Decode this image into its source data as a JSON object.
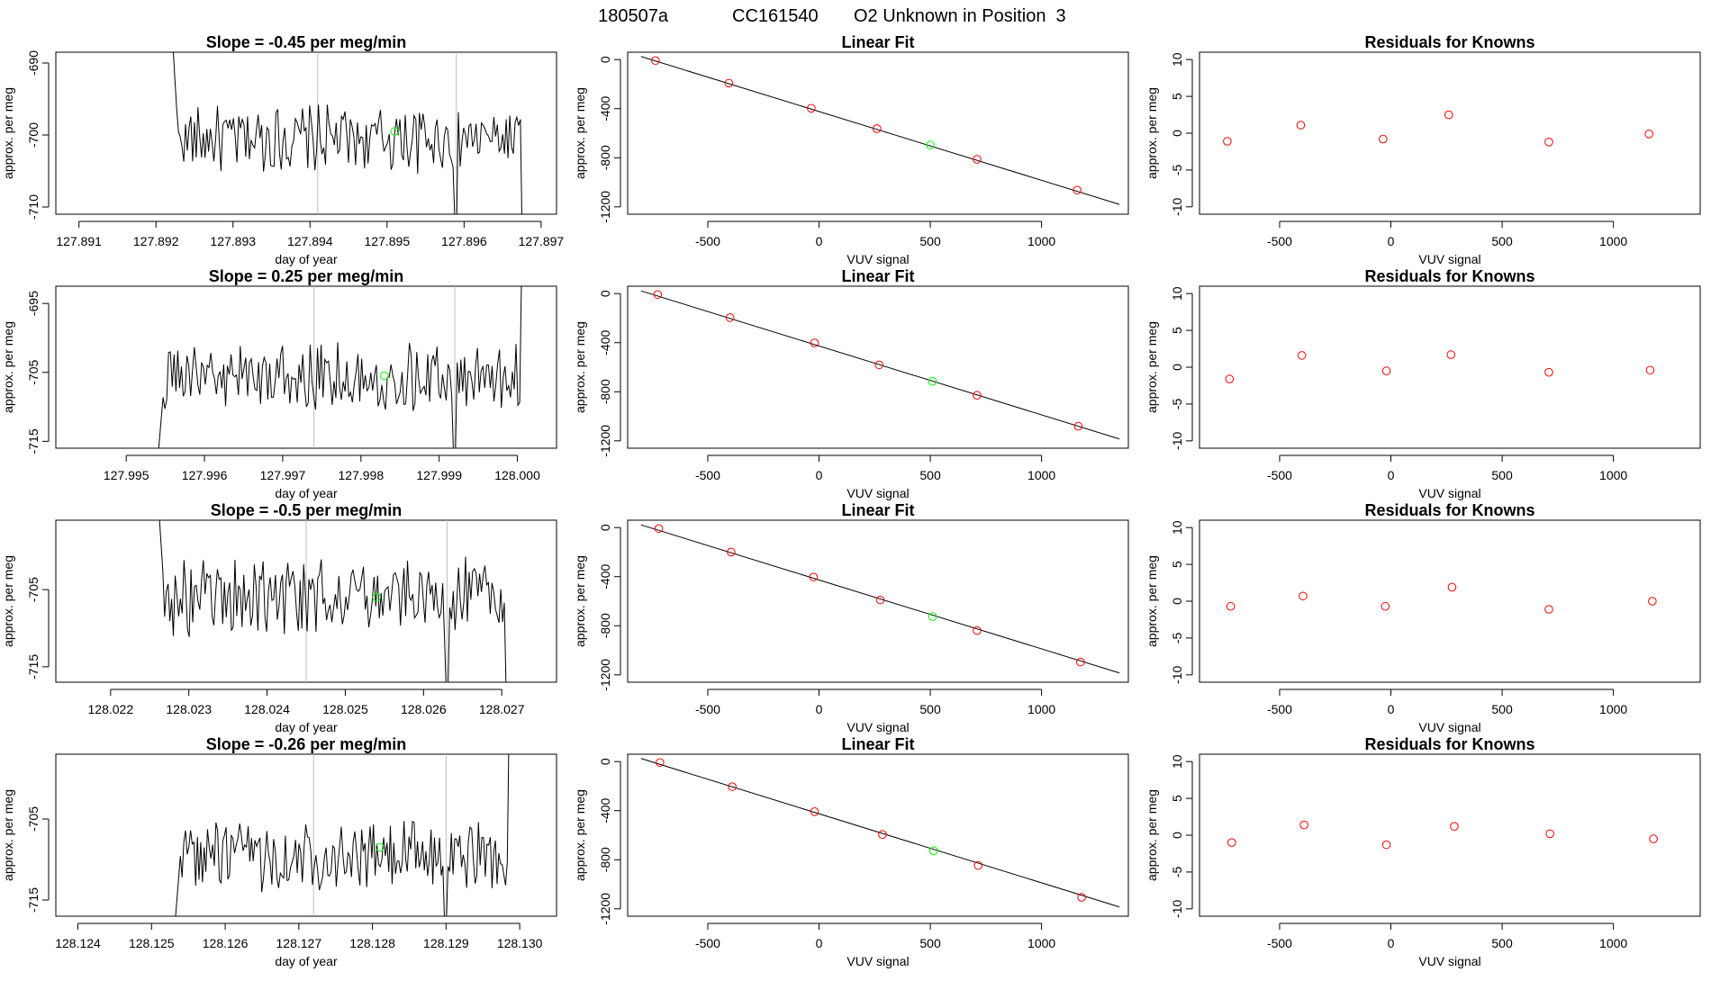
{
  "header": {
    "run_id": "180507a",
    "cylinder": "CC161540",
    "description": "O2 Unknown in Position  3"
  },
  "labels": {
    "day_of_year": "day of year",
    "approx_per_meg": "approx. per meg",
    "vuv_signal": "VUV signal"
  },
  "colors": {
    "trace": "#000000",
    "frame": "#000000",
    "marker": "#ff0000",
    "unknown": "#00ff00",
    "vline": "#bebebe"
  },
  "chart_data": [
    {
      "type": "line",
      "panel": "timeseries-1",
      "title": "Slope =  -0.45  per meg/min",
      "xlabel": "day of year",
      "ylabel": "approx. per meg",
      "xlim": [
        127.8907,
        127.8972
      ],
      "ylim": [
        -711,
        -688.5
      ],
      "xticks": [
        127.891,
        127.892,
        127.893,
        127.894,
        127.895,
        127.896,
        127.897
      ],
      "xticklabels": [
        "127.891",
        "127.892",
        "127.893",
        "127.894",
        "127.895",
        "127.896",
        "127.897"
      ],
      "yticks": [
        -690,
        -700,
        -710
      ],
      "yticklabels": [
        "-690",
        "-700",
        "-710"
      ],
      "vlines": [
        127.8941,
        127.8959
      ],
      "signal": {
        "x_start": 127.8922,
        "x_end": 127.8968,
        "level": -700.5,
        "amplitude": 2.6,
        "initial_y": -684,
        "drop_at": 127.8959,
        "drop_to": -712,
        "end_y": -714
      },
      "unknown_point": {
        "x": 127.8951,
        "y": -699.5
      }
    },
    {
      "type": "line",
      "panel": "timeseries-2",
      "title": "Slope =  0.25  per meg/min",
      "xlabel": "day of year",
      "ylabel": "approx. per meg",
      "xlim": [
        127.9941,
        128.0005
      ],
      "ylim": [
        -716,
        -692.5
      ],
      "xticks": [
        127.995,
        127.996,
        127.997,
        127.998,
        127.999,
        128.0
      ],
      "xticklabels": [
        "127.995",
        "127.996",
        "127.997",
        "127.998",
        "127.999",
        "128.000"
      ],
      "yticks": [
        -695,
        -705,
        -715
      ],
      "yticklabels": [
        "-695",
        "-705",
        "-715"
      ],
      "vlines": [
        127.9974,
        127.9992
      ],
      "signal": {
        "x_start": 127.9954,
        "x_end": 128.0001,
        "level": -705.5,
        "amplitude": 2.7,
        "initial_y": -718,
        "drop_at": 127.9992,
        "drop_to": -717,
        "end_y": -690
      },
      "unknown_point": {
        "x": 127.9983,
        "y": -705.5
      }
    },
    {
      "type": "line",
      "panel": "timeseries-3",
      "title": "Slope =  -0.5  per meg/min",
      "xlabel": "day of year",
      "ylabel": "approx. per meg",
      "xlim": [
        128.0213,
        128.0277
      ],
      "ylim": [
        -717,
        -696
      ],
      "xticks": [
        128.022,
        128.023,
        128.024,
        128.025,
        128.026,
        128.027
      ],
      "xticklabels": [
        "128.022",
        "128.023",
        "128.024",
        "128.025",
        "128.026",
        "128.027"
      ],
      "yticks": [
        -705,
        -715
      ],
      "yticklabels": [
        "-705",
        "-715"
      ],
      "vlines": [
        128.0245,
        128.0263
      ],
      "signal": {
        "x_start": 128.0226,
        "x_end": 128.0271,
        "level": -706,
        "amplitude": 2.8,
        "initial_y": -692,
        "drop_at": 128.0263,
        "drop_to": -718,
        "end_y": -718
      },
      "unknown_point": {
        "x": 128.0254,
        "y": -706
      }
    },
    {
      "type": "line",
      "panel": "timeseries-4",
      "title": "Slope =  -0.26  per meg/min",
      "xlabel": "day of year",
      "ylabel": "approx. per meg",
      "xlim": [
        128.1237,
        128.1305
      ],
      "ylim": [
        -717,
        -697
      ],
      "xticks": [
        128.124,
        128.125,
        128.126,
        128.127,
        128.128,
        128.129,
        128.13
      ],
      "xticklabels": [
        "128.124",
        "128.125",
        "128.126",
        "128.127",
        "128.128",
        "128.129",
        "128.130"
      ],
      "yticks": [
        -705,
        -715
      ],
      "yticklabels": [
        "-705",
        "-715"
      ],
      "vlines": [
        128.1272,
        128.129
      ],
      "signal": {
        "x_start": 128.1253,
        "x_end": 128.1299,
        "level": -709.5,
        "amplitude": 2.4,
        "initial_y": -720,
        "drop_at": 128.129,
        "drop_to": -718,
        "end_y": -694
      },
      "unknown_point": {
        "x": 128.1281,
        "y": -708.5
      }
    },
    {
      "type": "scatter",
      "panel": "linear-fit-1",
      "title": "Linear Fit",
      "xlabel": "VUV signal",
      "ylabel": "approx. per meg",
      "xlim": [
        -860,
        1390
      ],
      "ylim": [
        -1260,
        60
      ],
      "xticks": [
        -500,
        0,
        500,
        1000
      ],
      "xticklabels": [
        "-500",
        "0",
        "500",
        "1000"
      ],
      "yticks": [
        0,
        -400,
        -800,
        -1200
      ],
      "yticklabels": [
        "0",
        "-400",
        "-800",
        "-1200"
      ],
      "fit_line": {
        "x": [
          -800,
          1350
        ],
        "y": [
          25,
          -1180
        ]
      },
      "known_points": {
        "x": [
          -735,
          -405,
          -35,
          260,
          710,
          1160
        ],
        "y": [
          -8,
          -192,
          -397,
          -563,
          -813,
          -1064
        ]
      },
      "unknown_point": {
        "x": 500,
        "y": -696
      }
    },
    {
      "type": "scatter",
      "panel": "linear-fit-2",
      "title": "Linear Fit",
      "xlabel": "VUV signal",
      "ylabel": "approx. per meg",
      "xlim": [
        -860,
        1390
      ],
      "ylim": [
        -1260,
        60
      ],
      "xticks": [
        -500,
        0,
        500,
        1000
      ],
      "xticklabels": [
        "-500",
        "0",
        "500",
        "1000"
      ],
      "yticks": [
        0,
        -400,
        -800,
        -1200
      ],
      "yticklabels": [
        "0",
        "-400",
        "-800",
        "-1200"
      ],
      "fit_line": {
        "x": [
          -800,
          1350
        ],
        "y": [
          22,
          -1185
        ]
      },
      "known_points": {
        "x": [
          -725,
          -400,
          -20,
          270,
          710,
          1165
        ],
        "y": [
          -8,
          -196,
          -402,
          -581,
          -829,
          -1081
        ]
      },
      "unknown_point": {
        "x": 510,
        "y": -715
      }
    },
    {
      "type": "scatter",
      "panel": "linear-fit-3",
      "title": "Linear Fit",
      "xlabel": "VUV signal",
      "ylabel": "approx. per meg",
      "xlim": [
        -860,
        1390
      ],
      "ylim": [
        -1260,
        60
      ],
      "xticks": [
        -500,
        0,
        500,
        1000
      ],
      "xticklabels": [
        "-500",
        "0",
        "500",
        "1000"
      ],
      "yticks": [
        0,
        -400,
        -800,
        -1200
      ],
      "yticklabels": [
        "0",
        "-400",
        "-800",
        "-1200"
      ],
      "fit_line": {
        "x": [
          -800,
          1350
        ],
        "y": [
          22,
          -1185
        ]
      },
      "known_points": {
        "x": [
          -720,
          -395,
          -25,
          275,
          710,
          1175
        ],
        "y": [
          -8,
          -200,
          -403,
          -590,
          -839,
          -1096
        ]
      },
      "unknown_point": {
        "x": 510,
        "y": -725
      }
    },
    {
      "type": "scatter",
      "panel": "linear-fit-4",
      "title": "Linear Fit",
      "xlabel": "VUV signal",
      "ylabel": "approx. per meg",
      "xlim": [
        -860,
        1390
      ],
      "ylim": [
        -1260,
        60
      ],
      "xticks": [
        -500,
        0,
        500,
        1000
      ],
      "xticklabels": [
        "-500",
        "0",
        "500",
        "1000"
      ],
      "yticks": [
        0,
        -400,
        -800,
        -1200
      ],
      "yticklabels": [
        "0",
        "-400",
        "-800",
        "-1200"
      ],
      "fit_line": {
        "x": [
          -800,
          1350
        ],
        "y": [
          25,
          -1185
        ]
      },
      "known_points": {
        "x": [
          -715,
          -390,
          -20,
          285,
          715,
          1180
        ],
        "y": [
          -8,
          -205,
          -408,
          -594,
          -847,
          -1106
        ]
      },
      "unknown_point": {
        "x": 515,
        "y": -726
      }
    },
    {
      "type": "scatter",
      "panel": "residuals-1",
      "title": "Residuals for Knowns",
      "xlabel": "VUV signal",
      "ylabel": "approx. per meg",
      "xlim": [
        -860,
        1390
      ],
      "ylim": [
        -11,
        11
      ],
      "xticks": [
        -500,
        0,
        500,
        1000
      ],
      "xticklabels": [
        "-500",
        "0",
        "500",
        "1000"
      ],
      "yticks": [
        10,
        5,
        0,
        -5,
        -10
      ],
      "yticklabels": [
        "10",
        "5",
        "0",
        "-5",
        "-10"
      ],
      "x": [
        -735,
        -405,
        -35,
        260,
        710,
        1160
      ],
      "y": [
        -1.1,
        1.1,
        -0.8,
        2.5,
        -1.2,
        -0.1
      ]
    },
    {
      "type": "scatter",
      "panel": "residuals-2",
      "title": "Residuals for Knowns",
      "xlabel": "VUV signal",
      "ylabel": "approx. per meg",
      "xlim": [
        -860,
        1390
      ],
      "ylim": [
        -11,
        11
      ],
      "xticks": [
        -500,
        0,
        500,
        1000
      ],
      "xticklabels": [
        "-500",
        "0",
        "500",
        "1000"
      ],
      "yticks": [
        10,
        5,
        0,
        -5,
        -10
      ],
      "yticklabels": [
        "10",
        "5",
        "0",
        "-5",
        "-10"
      ],
      "x": [
        -725,
        -400,
        -20,
        270,
        710,
        1165
      ],
      "y": [
        -1.6,
        1.6,
        -0.5,
        1.7,
        -0.7,
        -0.4
      ]
    },
    {
      "type": "scatter",
      "panel": "residuals-3",
      "title": "Residuals for Knowns",
      "xlabel": "VUV signal",
      "ylabel": "approx. per meg",
      "xlim": [
        -860,
        1390
      ],
      "ylim": [
        -11,
        11
      ],
      "xticks": [
        -500,
        0,
        500,
        1000
      ],
      "xticklabels": [
        "-500",
        "0",
        "500",
        "1000"
      ],
      "yticks": [
        10,
        5,
        0,
        -5,
        -10
      ],
      "yticklabels": [
        "10",
        "5",
        "0",
        "-5",
        "-10"
      ],
      "x": [
        -720,
        -395,
        -25,
        275,
        710,
        1175
      ],
      "y": [
        -0.7,
        0.7,
        -0.7,
        1.9,
        -1.1,
        0.0
      ]
    },
    {
      "type": "scatter",
      "panel": "residuals-4",
      "title": "Residuals for Knowns",
      "xlabel": "VUV signal",
      "ylabel": "approx. per meg",
      "xlim": [
        -860,
        1390
      ],
      "ylim": [
        -11,
        11
      ],
      "xticks": [
        -500,
        0,
        500,
        1000
      ],
      "xticklabels": [
        "-500",
        "0",
        "500",
        "1000"
      ],
      "yticks": [
        10,
        5,
        0,
        -5,
        -10
      ],
      "yticklabels": [
        "10",
        "5",
        "0",
        "-5",
        "-10"
      ],
      "x": [
        -715,
        -390,
        -20,
        285,
        715,
        1180
      ],
      "y": [
        -1.0,
        1.4,
        -1.3,
        1.2,
        0.2,
        -0.5
      ]
    }
  ]
}
